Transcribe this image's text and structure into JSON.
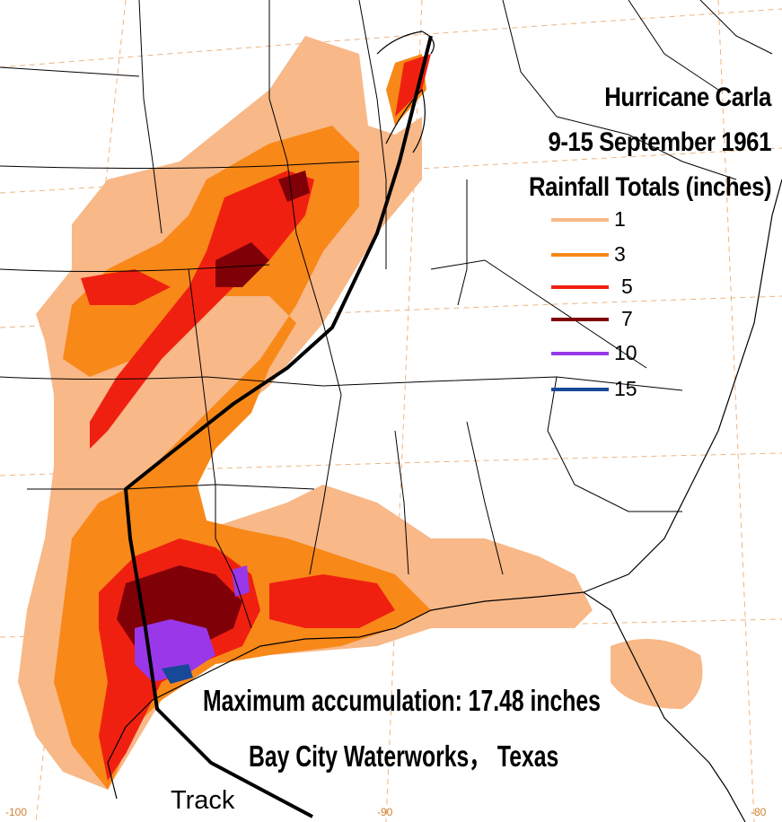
{
  "title": {
    "line1": "Hurricane Carla",
    "line2": "9-15 September 1961",
    "line3": "Rainfall Totals (inches)"
  },
  "legend": [
    {
      "label": "1",
      "color": "#f8b888"
    },
    {
      "label": "3",
      "color": "#f88818"
    },
    {
      "label": "5",
      "color": "#f02010"
    },
    {
      "label": "7",
      "color": "#800008"
    },
    {
      "label": "10",
      "color": "#9838e8"
    },
    {
      "label": "15",
      "color": "#184898"
    }
  ],
  "annotation": {
    "max_line": "Maximum accumulation: 17.48 inches",
    "location_line": "Bay City Waterworks， Texas"
  },
  "track_label": "Track",
  "longitude_labels": [
    "-100",
    "-90",
    "-80"
  ],
  "colors": {
    "graticule": "#e8a060",
    "borders": "#000000",
    "track": "#000000"
  }
}
